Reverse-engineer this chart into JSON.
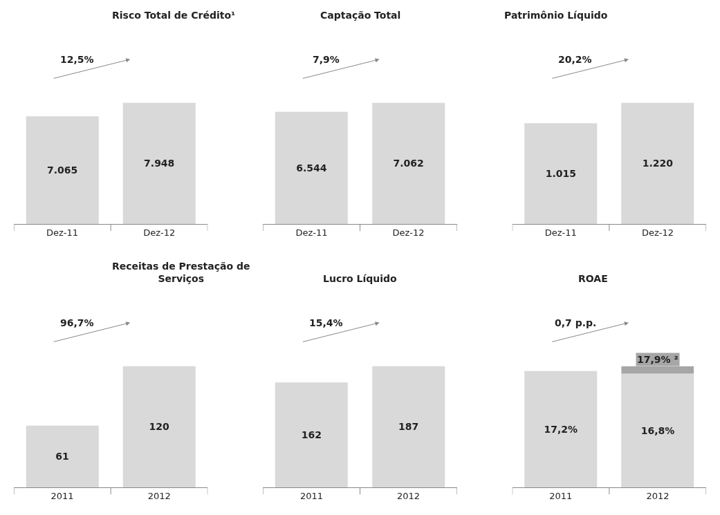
{
  "chart_data": [
    {
      "type": "bar",
      "title": "Risco Total de Crédito¹",
      "categories": [
        "Dez-11",
        "Dez-12"
      ],
      "series": [
        {
          "color": "#d9d9d9",
          "values": [
            7065,
            7948
          ],
          "value_labels": [
            "7.065",
            "7.948"
          ]
        }
      ],
      "annotations": [
        "12,5%"
      ],
      "tick_labels": "x"
    },
    {
      "type": "bar",
      "title": "Captação Total",
      "categories": [
        "Dez-11",
        "Dez-12"
      ],
      "series": [
        {
          "color": "#d9d9d9",
          "values": [
            6544,
            7062
          ],
          "value_labels": [
            "6.544",
            "7.062"
          ]
        }
      ],
      "annotations": [
        "7,9%"
      ],
      "tick_labels": "x"
    },
    {
      "type": "bar",
      "title": "Patrimônio Líquido",
      "categories": [
        "Dez-11",
        "Dez-12"
      ],
      "series": [
        {
          "color": "#d9d9d9",
          "values": [
            1015,
            1220
          ],
          "value_labels": [
            "1.015",
            "1.220"
          ]
        }
      ],
      "annotations": [
        "20,2%"
      ],
      "tick_labels": "x"
    },
    {
      "type": "bar",
      "title": "Receitas de Prestação de Serviços",
      "categories": [
        "2011",
        "2012"
      ],
      "series": [
        {
          "color": "#d9d9d9",
          "values": [
            61,
            120
          ],
          "value_labels": [
            "61",
            "120"
          ]
        }
      ],
      "annotations": [
        "96,7%"
      ],
      "tick_labels": "x"
    },
    {
      "type": "bar",
      "title": "Lucro Líquido",
      "categories": [
        "2011",
        "2012"
      ],
      "series": [
        {
          "color": "#d9d9d9",
          "values": [
            162,
            187
          ],
          "value_labels": [
            "162",
            "187"
          ]
        }
      ],
      "annotations": [
        "15,4%"
      ],
      "tick_labels": "x"
    },
    {
      "type": "bar",
      "title": "ROAE",
      "categories": [
        "2011",
        "2012"
      ],
      "stacked": true,
      "series": [
        {
          "color": "#d9d9d9",
          "values": [
            17.2,
            16.8
          ],
          "value_labels": [
            "17,2%",
            "16,8%"
          ]
        },
        {
          "color": "#a6a6a6",
          "values": [
            null,
            1.1
          ]
        }
      ],
      "annotations": [
        "0,7 p.p.",
        {
          "text": "17,9% ²",
          "x": "2012",
          "y": 17.9
        }
      ],
      "tick_labels": "x"
    }
  ]
}
